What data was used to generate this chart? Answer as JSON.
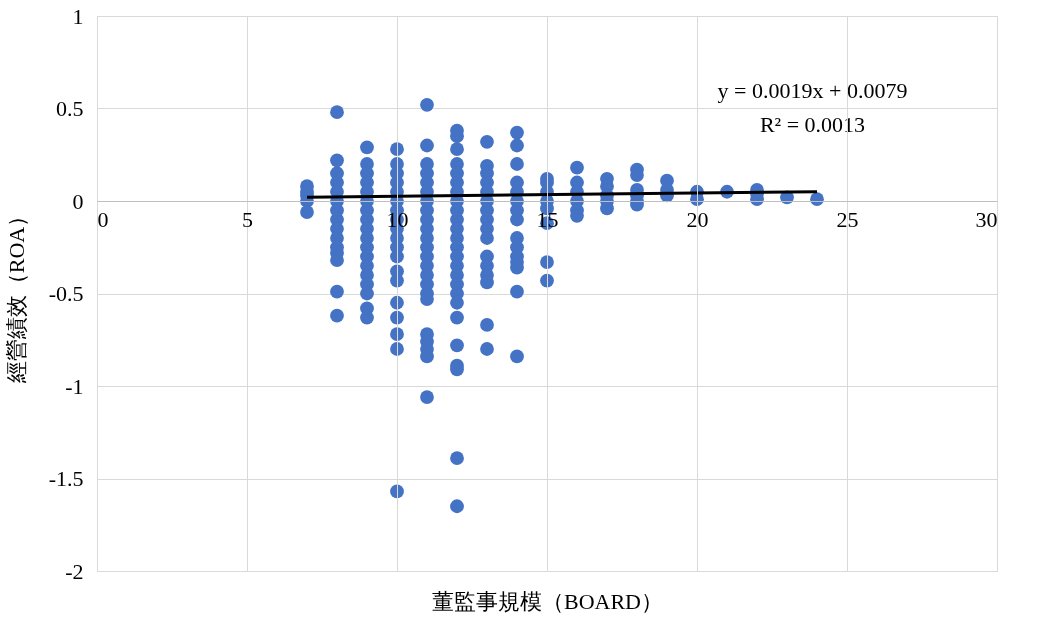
{
  "chart_data": {
    "type": "scatter",
    "xlabel": "董監事規模（BOARD）",
    "ylabel": "經營績效（ROA）",
    "xlim": [
      0,
      30
    ],
    "xticks": [
      0,
      5,
      10,
      15,
      20,
      25,
      30
    ],
    "ylim": [
      -2,
      1
    ],
    "yticks": [
      -2,
      -1.5,
      -1,
      -0.5,
      0,
      0.5,
      1
    ],
    "grid": true,
    "marker": "circle",
    "annotations": [
      "y = 0.0019x + 0.0079",
      "R² = 0.0013"
    ],
    "series": [
      {
        "color": "#4472c4",
        "x": [
          7,
          7,
          7,
          7,
          7,
          8,
          8,
          8,
          8,
          8,
          8,
          8,
          8,
          8,
          8,
          8,
          8,
          8,
          8,
          8,
          9,
          9,
          9,
          9,
          9,
          9,
          9,
          9,
          9,
          9,
          9,
          9,
          9,
          9,
          9,
          9,
          9,
          9,
          10,
          10,
          10,
          10,
          10,
          10,
          10,
          10,
          10,
          10,
          10,
          10,
          10,
          10,
          10,
          10,
          10,
          10,
          10,
          11,
          11,
          11,
          11,
          11,
          11,
          11,
          11,
          11,
          11,
          11,
          11,
          11,
          11,
          11,
          11,
          11,
          11,
          11,
          11,
          11,
          11,
          11,
          12,
          12,
          12,
          12,
          12,
          12,
          12,
          12,
          12,
          12,
          12,
          12,
          12,
          12,
          12,
          12,
          12,
          12,
          12,
          12,
          12,
          12,
          12,
          12,
          12,
          13,
          13,
          13,
          13,
          13,
          13,
          13,
          13,
          13,
          13,
          13,
          13,
          13,
          13,
          13,
          13,
          14,
          14,
          14,
          14,
          14,
          14,
          14,
          14,
          14,
          14,
          14,
          14,
          14,
          14,
          14,
          15,
          15,
          15,
          15,
          15,
          15,
          15,
          15,
          16,
          16,
          16,
          16,
          16,
          16,
          17,
          17,
          17,
          17,
          17,
          18,
          18,
          18,
          18,
          18,
          18,
          19,
          19,
          19,
          20,
          20,
          21,
          22,
          22,
          22,
          23,
          24
        ],
        "values": [
          0.08,
          0.05,
          0.03,
          0.0,
          -0.06,
          0.48,
          0.22,
          0.15,
          0.1,
          0.05,
          0.0,
          -0.05,
          -0.1,
          -0.15,
          -0.2,
          -0.25,
          -0.28,
          -0.32,
          -0.49,
          -0.62,
          0.29,
          0.2,
          0.15,
          0.1,
          0.05,
          0.0,
          -0.05,
          -0.1,
          -0.15,
          -0.2,
          -0.25,
          -0.3,
          -0.35,
          -0.4,
          -0.45,
          -0.5,
          -0.58,
          -0.63,
          0.28,
          0.2,
          0.15,
          0.1,
          0.05,
          0.0,
          -0.05,
          -0.1,
          -0.15,
          -0.2,
          -0.25,
          -0.3,
          -0.38,
          -0.43,
          -0.55,
          -0.63,
          -0.72,
          -0.8,
          -1.57,
          0.52,
          0.3,
          0.2,
          0.15,
          0.1,
          0.05,
          0.0,
          -0.05,
          -0.1,
          -0.15,
          -0.2,
          -0.25,
          -0.3,
          -0.35,
          -0.4,
          -0.45,
          -0.5,
          -0.53,
          -0.72,
          -0.76,
          -0.8,
          -0.84,
          -1.06,
          0.38,
          0.35,
          0.28,
          0.2,
          0.15,
          0.1,
          0.05,
          0.0,
          -0.05,
          -0.1,
          -0.15,
          -0.2,
          -0.25,
          -0.3,
          -0.35,
          -0.4,
          -0.45,
          -0.5,
          -0.55,
          -0.63,
          -0.78,
          -0.89,
          -0.91,
          -1.39,
          -1.65,
          0.32,
          0.19,
          0.15,
          0.1,
          0.05,
          0.0,
          -0.05,
          -0.1,
          -0.15,
          -0.2,
          -0.3,
          -0.35,
          -0.4,
          -0.44,
          -0.67,
          -0.8,
          0.37,
          0.3,
          0.2,
          0.1,
          0.05,
          0.0,
          -0.05,
          -0.1,
          -0.2,
          -0.25,
          -0.3,
          -0.33,
          -0.36,
          -0.49,
          -0.84,
          0.12,
          0.1,
          0.05,
          0.0,
          -0.04,
          -0.12,
          -0.33,
          -0.43,
          0.18,
          0.1,
          0.05,
          0.0,
          -0.05,
          -0.08,
          0.12,
          0.08,
          0.03,
          0.0,
          -0.04,
          0.17,
          0.14,
          0.06,
          0.03,
          0.0,
          -0.02,
          0.11,
          0.06,
          0.03,
          0.05,
          0.01,
          0.05,
          0.06,
          0.04,
          0.01,
          0.02,
          0.01
        ]
      },
      {
        "type": "line",
        "color": "#000000",
        "marker": "none",
        "line_style": "solid",
        "x": [
          7,
          24
        ],
        "values": [
          0.02,
          0.05
        ]
      }
    ]
  }
}
